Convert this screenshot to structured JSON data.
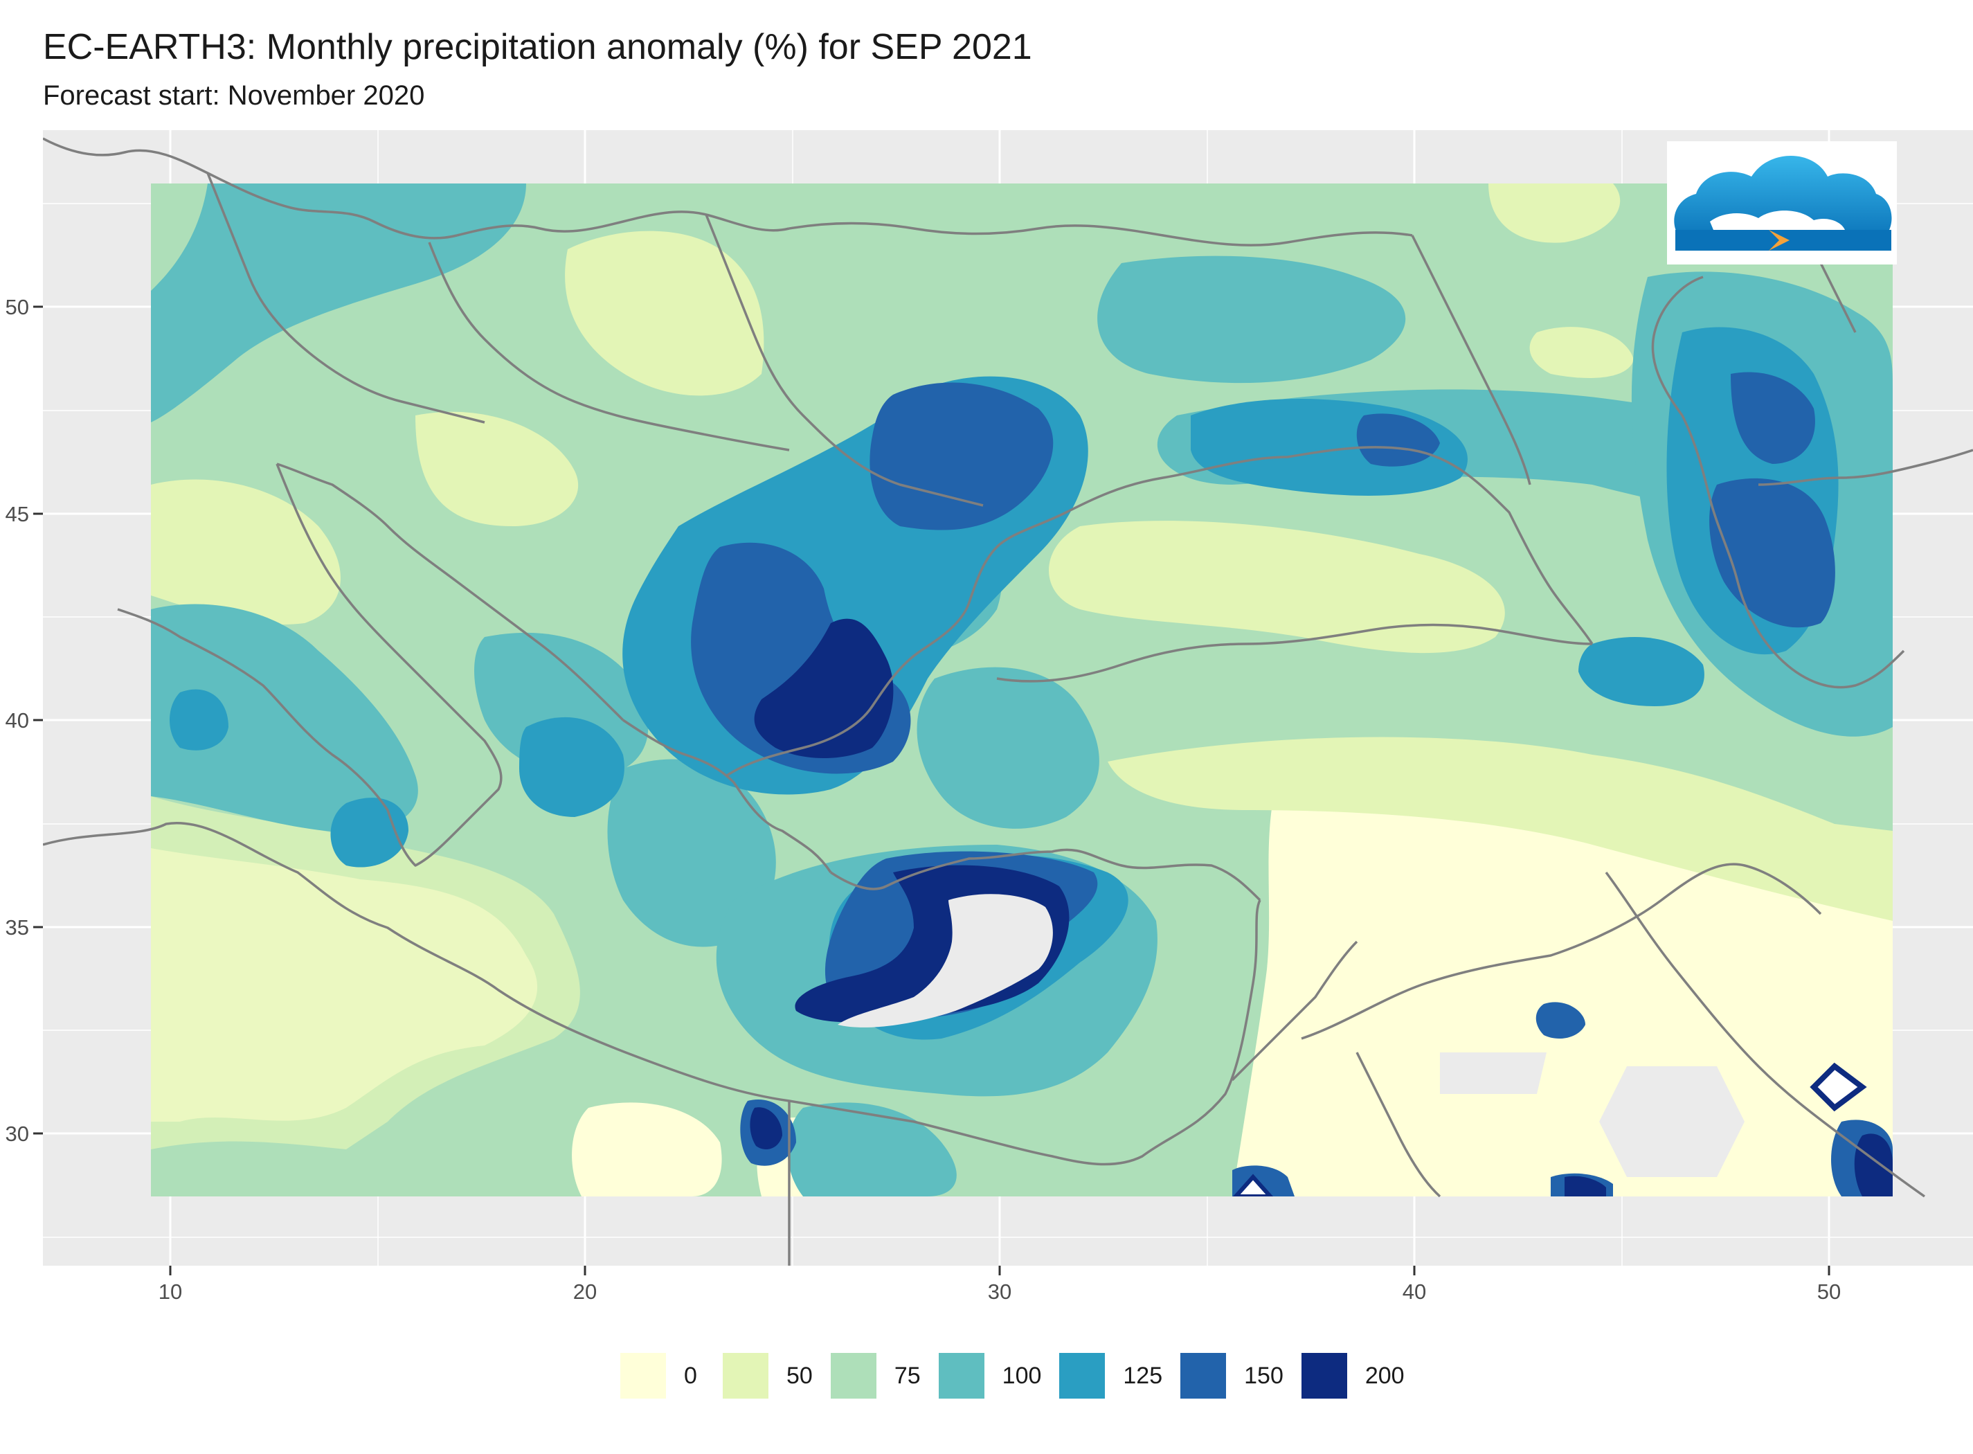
{
  "header": {
    "title": "EC-EARTH3: Monthly precipitation anomaly (%) for SEP 2021",
    "subtitle": "Forecast start: November 2020"
  },
  "axes": {
    "x_ticks": [
      "10",
      "20",
      "30",
      "40",
      "50"
    ],
    "y_ticks": [
      "50",
      "45",
      "40",
      "35",
      "30"
    ],
    "x_range": [
      6.9,
      53.8
    ],
    "y_range": [
      26.8,
      54.0
    ]
  },
  "legend": {
    "items": [
      {
        "label": "0",
        "color": "#ffffd9"
      },
      {
        "label": "50",
        "color": "#e3f5b6"
      },
      {
        "label": "75",
        "color": "#aedfb9"
      },
      {
        "label": "100",
        "color": "#5fbec0"
      },
      {
        "label": "125",
        "color": "#2a9ec2"
      },
      {
        "label": "150",
        "color": "#2263ab"
      },
      {
        "label": "200",
        "color": "#0d2b80"
      }
    ]
  },
  "colors": {
    "panel_background": "#ebebeb",
    "gridline": "#ffffff",
    "coastline": "#7f7f7f",
    "no_data": "#ebebeb"
  },
  "logo": {
    "icon": "cloud-logo-icon"
  }
}
